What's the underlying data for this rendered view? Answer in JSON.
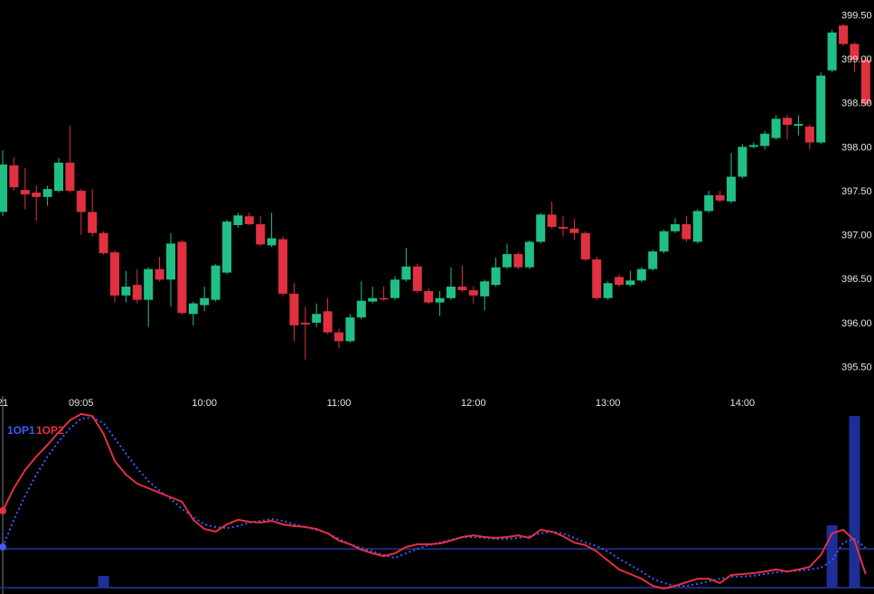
{
  "chart_data": [
    {
      "type": "candlestick",
      "open": [
        397.27,
        397.8,
        397.52,
        397.49,
        397.44,
        397.51,
        397.83,
        397.51,
        397.27,
        397.03,
        396.81,
        396.32,
        396.44,
        396.27,
        396.62,
        396.5,
        396.93,
        396.11,
        396.21,
        396.27,
        396.58,
        397.12,
        397.22,
        397.13,
        396.89,
        396.96,
        396.34,
        396.01,
        396.01,
        396.14,
        395.9,
        395.8,
        396.07,
        396.25,
        396.29,
        396.29,
        396.5,
        396.65,
        396.37,
        396.24,
        396.29,
        396.42,
        396.38,
        396.31,
        396.44,
        396.64,
        396.79,
        396.64,
        396.93,
        397.24,
        397.1,
        397.08,
        397.03,
        396.73,
        396.29,
        396.53,
        396.44,
        396.49,
        396.62,
        396.82,
        397.05,
        397.13,
        396.93,
        397.28,
        397.46,
        397.39,
        397.67,
        398.01,
        398.02,
        398.11,
        398.34,
        398.25,
        398.24,
        398.06,
        398.88,
        399.39,
        399.18,
        399.0
      ],
      "high": [
        397.97,
        397.89,
        397.77,
        397.57,
        397.57,
        397.88,
        398.25,
        397.53,
        397.53,
        397.05,
        396.83,
        396.6,
        396.62,
        396.64,
        396.76,
        397.03,
        396.95,
        396.25,
        396.42,
        396.68,
        397.18,
        397.26,
        397.26,
        397.22,
        397.26,
        396.99,
        396.46,
        396.19,
        396.23,
        396.29,
        395.94,
        396.11,
        396.48,
        396.42,
        396.42,
        396.54,
        396.86,
        396.68,
        396.4,
        396.37,
        396.64,
        396.66,
        396.42,
        396.5,
        396.75,
        396.91,
        396.81,
        396.95,
        397.26,
        397.39,
        397.22,
        397.19,
        397.05,
        396.76,
        396.48,
        396.56,
        396.6,
        396.64,
        396.84,
        397.07,
        397.2,
        397.22,
        397.3,
        397.51,
        397.51,
        397.94,
        398.04,
        398.06,
        398.19,
        398.37,
        398.37,
        398.37,
        398.26,
        398.86,
        399.34,
        399.41,
        399.2,
        399.05
      ],
      "low": [
        397.22,
        397.51,
        397.3,
        397.17,
        397.34,
        397.49,
        397.49,
        397.01,
        396.99,
        396.78,
        396.24,
        396.24,
        396.23,
        395.96,
        396.48,
        396.19,
        396.1,
        395.98,
        396.14,
        396.25,
        396.56,
        397.09,
        397.12,
        396.88,
        396.87,
        396.32,
        395.8,
        395.59,
        395.96,
        395.88,
        395.72,
        395.78,
        396.05,
        396.23,
        396.26,
        396.27,
        396.48,
        396.35,
        396.22,
        396.09,
        396.27,
        396.36,
        396.23,
        396.15,
        396.42,
        396.62,
        396.62,
        396.62,
        396.91,
        397.08,
        396.99,
        396.95,
        396.71,
        396.27,
        396.27,
        396.42,
        396.42,
        396.47,
        396.6,
        396.8,
        397.03,
        396.93,
        396.91,
        397.26,
        397.38,
        397.37,
        397.65,
        397.99,
        397.98,
        398.09,
        398.09,
        398.14,
        397.98,
        398.04,
        398.86,
        399.16,
        398.86,
        398.48
      ],
      "close": [
        397.81,
        397.55,
        397.47,
        397.44,
        397.53,
        397.83,
        397.51,
        397.27,
        397.03,
        396.8,
        396.32,
        396.42,
        396.27,
        396.62,
        396.5,
        396.91,
        396.12,
        396.23,
        396.29,
        396.66,
        397.16,
        397.23,
        397.13,
        396.9,
        396.97,
        396.34,
        395.98,
        395.99,
        396.11,
        395.9,
        395.8,
        396.07,
        396.26,
        396.29,
        396.28,
        396.5,
        396.65,
        396.37,
        396.24,
        396.29,
        396.42,
        396.38,
        396.32,
        396.48,
        396.64,
        396.79,
        396.64,
        396.93,
        397.24,
        397.1,
        397.08,
        397.03,
        396.73,
        396.29,
        396.46,
        396.44,
        396.49,
        396.62,
        396.82,
        397.05,
        397.13,
        396.96,
        397.28,
        397.46,
        397.4,
        397.67,
        398.01,
        398.03,
        398.16,
        398.33,
        398.26,
        398.27,
        398.06,
        398.82,
        399.31,
        399.18,
        399.0,
        398.5
      ],
      "up_color": "#1fbf85",
      "down_color": "#e0313f",
      "ylim": [
        395.3,
        399.68
      ],
      "yticks": [
        {
          "value": 399.5,
          "label": "399.50"
        },
        {
          "value": 399.0,
          "label": "399.00"
        },
        {
          "value": 398.5,
          "label": "398.50"
        },
        {
          "value": 398.0,
          "label": "398.00"
        },
        {
          "value": 397.5,
          "label": "397.50"
        },
        {
          "value": 397.0,
          "label": "397.00"
        },
        {
          "value": 396.5,
          "label": "396.50"
        },
        {
          "value": 396.0,
          "label": "396.00"
        },
        {
          "value": 395.5,
          "label": "395.50"
        }
      ],
      "xlim": [
        -0.24,
        77.74
      ],
      "xticks": [
        {
          "value": 0,
          "label": "21"
        },
        {
          "value": 7,
          "label": "09:05"
        },
        {
          "value": 18,
          "label": "10:00"
        },
        {
          "value": 30,
          "label": "11:00"
        },
        {
          "value": 42,
          "label": "12:00"
        },
        {
          "value": 54,
          "label": "13:00"
        },
        {
          "value": 66,
          "label": "14:00"
        }
      ]
    },
    {
      "type": "line",
      "series": [
        {
          "name": "1OP1",
          "color": "#3d5cff",
          "style": "dotted",
          "values": [
            23.1,
            38.5,
            52.3,
            64.1,
            74.4,
            83.1,
            90.3,
            95.9,
            96.4,
            93.3,
            84.6,
            75.9,
            67.7,
            60.5,
            54.9,
            50.3,
            44.6,
            40.0,
            35.9,
            34.4,
            33.8,
            34.9,
            36.9,
            37.9,
            39.0,
            37.9,
            35.9,
            34.4,
            32.8,
            30.8,
            27.7,
            24.6,
            22.6,
            20.5,
            18.5,
            16.9,
            19.5,
            22.1,
            24.1,
            25.6,
            27.2,
            28.7,
            28.7,
            28.2,
            27.7,
            27.7,
            28.2,
            29.2,
            30.8,
            31.8,
            30.8,
            28.2,
            25.6,
            23.6,
            20.5,
            16.4,
            12.8,
            9.2,
            5.1,
            2.6,
            1.0,
            1.0,
            2.1,
            3.6,
            5.1,
            6.2,
            6.2,
            6.7,
            7.7,
            8.7,
            9.2,
            9.7,
            10.3,
            11.3,
            15.4,
            25.6,
            27.7,
            22.6
          ]
        },
        {
          "name": "1OP2",
          "color": "#e5303f",
          "style": "solid",
          "values": [
            43.6,
            56.4,
            66.7,
            74.4,
            81.0,
            88.2,
            94.9,
            98.5,
            97.4,
            87.2,
            71.8,
            64.1,
            59.0,
            56.4,
            53.8,
            51.3,
            48.7,
            38.5,
            33.3,
            31.8,
            35.9,
            38.5,
            37.4,
            36.9,
            37.9,
            35.9,
            34.9,
            34.4,
            33.3,
            30.8,
            26.7,
            24.6,
            21.5,
            19.5,
            17.9,
            19.5,
            23.1,
            24.6,
            24.6,
            25.1,
            26.7,
            28.7,
            29.7,
            28.7,
            28.2,
            28.7,
            29.7,
            28.2,
            32.8,
            31.8,
            29.2,
            25.6,
            24.1,
            20.5,
            15.4,
            10.3,
            7.7,
            5.1,
            1.0,
            -0.5,
            1.0,
            3.1,
            5.1,
            5.1,
            2.6,
            7.2,
            7.7,
            8.2,
            9.2,
            10.3,
            9.2,
            10.3,
            11.8,
            18.5,
            30.8,
            32.8,
            26.7,
            7.7
          ]
        }
      ],
      "bars": {
        "x": [
          9,
          74,
          76
        ],
        "values": [
          6.7,
          35.4,
          97.4
        ],
        "color": "#1f2e96"
      },
      "levels": [
        22,
        0
      ],
      "level_color": "#1c2a78",
      "ylim": [
        0,
        100
      ]
    }
  ]
}
